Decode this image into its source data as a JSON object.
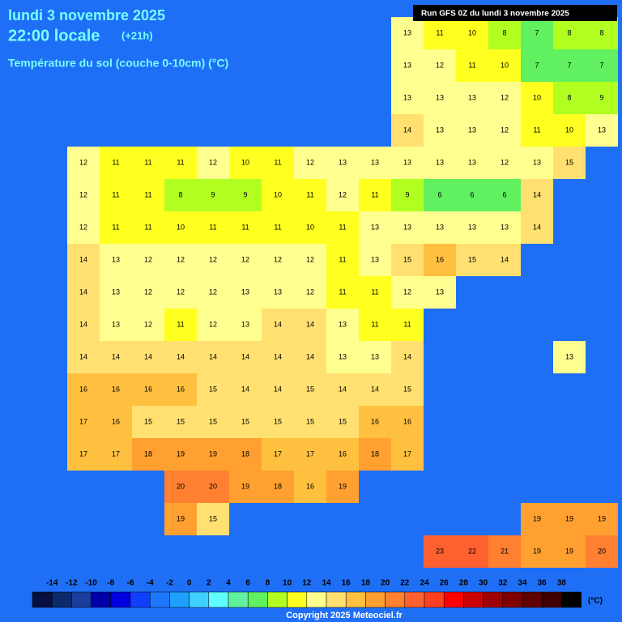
{
  "header": {
    "date": "lundi 3 novembre 2025",
    "time": "22:00 locale",
    "offset": "(+21h)",
    "subtitle": "Température du sol (couche 0-10cm) (°C)",
    "run": "Run GFS 0Z du lundi 3 novembre 2025"
  },
  "grid": {
    "rows": [
      [
        null,
        null,
        null,
        null,
        null,
        null,
        null,
        null,
        null,
        null,
        null,
        null,
        13,
        11,
        10,
        8,
        7,
        8,
        8
      ],
      [
        null,
        null,
        null,
        null,
        null,
        null,
        null,
        null,
        null,
        null,
        null,
        null,
        13,
        12,
        11,
        10,
        7,
        7,
        7
      ],
      [
        null,
        null,
        null,
        null,
        null,
        null,
        null,
        null,
        null,
        null,
        null,
        null,
        13,
        13,
        13,
        12,
        10,
        8,
        9
      ],
      [
        null,
        null,
        null,
        null,
        null,
        null,
        null,
        null,
        null,
        null,
        null,
        null,
        14,
        13,
        13,
        12,
        11,
        10,
        13
      ],
      [
        null,
        null,
        12,
        11,
        11,
        11,
        12,
        10,
        11,
        12,
        13,
        13,
        13,
        13,
        13,
        12,
        13,
        15,
        null
      ],
      [
        null,
        null,
        12,
        11,
        11,
        8,
        9,
        9,
        10,
        11,
        12,
        11,
        9,
        6,
        6,
        6,
        14,
        null,
        null
      ],
      [
        null,
        null,
        12,
        11,
        11,
        10,
        11,
        11,
        11,
        10,
        11,
        13,
        13,
        13,
        13,
        13,
        14,
        null,
        null
      ],
      [
        null,
        null,
        14,
        13,
        12,
        12,
        12,
        12,
        12,
        12,
        11,
        13,
        15,
        16,
        15,
        14,
        null,
        null,
        null
      ],
      [
        null,
        null,
        14,
        13,
        12,
        12,
        12,
        13,
        13,
        12,
        11,
        11,
        12,
        13,
        null,
        null,
        null,
        null,
        null
      ],
      [
        null,
        null,
        14,
        13,
        12,
        11,
        12,
        13,
        14,
        14,
        13,
        11,
        11,
        null,
        null,
        null,
        null,
        null,
        null
      ],
      [
        null,
        null,
        14,
        14,
        14,
        14,
        14,
        14,
        14,
        14,
        13,
        13,
        14,
        null,
        null,
        null,
        null,
        13,
        null
      ],
      [
        null,
        null,
        16,
        16,
        16,
        16,
        15,
        14,
        14,
        15,
        14,
        14,
        15,
        null,
        null,
        null,
        null,
        null,
        null
      ],
      [
        null,
        null,
        17,
        16,
        15,
        15,
        15,
        15,
        15,
        15,
        15,
        16,
        16,
        null,
        null,
        null,
        null,
        null,
        null
      ],
      [
        null,
        null,
        17,
        17,
        18,
        19,
        19,
        18,
        17,
        17,
        16,
        18,
        17,
        null,
        null,
        null,
        null,
        null,
        null
      ],
      [
        null,
        null,
        null,
        null,
        null,
        20,
        20,
        19,
        18,
        16,
        19,
        null,
        null,
        null,
        null,
        null,
        null,
        null,
        null
      ],
      [
        null,
        null,
        null,
        null,
        null,
        19,
        15,
        null,
        null,
        null,
        null,
        null,
        null,
        null,
        null,
        null,
        19,
        19,
        19
      ],
      [
        null,
        null,
        null,
        null,
        null,
        null,
        null,
        null,
        null,
        null,
        null,
        null,
        null,
        23,
        22,
        21,
        19,
        19,
        20
      ]
    ]
  },
  "legend": {
    "labels": [
      -14,
      -12,
      -10,
      -8,
      -6,
      -4,
      -2,
      0,
      2,
      4,
      6,
      8,
      10,
      12,
      14,
      16,
      18,
      20,
      22,
      24,
      26,
      28,
      30,
      32,
      34,
      36,
      38
    ],
    "colors": [
      "#061040",
      "#0a2a6a",
      "#1a3c9a",
      "#0000a8",
      "#0000e0",
      "#1040ff",
      "#1e78ff",
      "#1ea0ff",
      "#40d0ff",
      "#60ffff",
      "#60f0a0",
      "#60f060",
      "#b0ff20",
      "#ffff20",
      "#ffff90",
      "#ffe070",
      "#ffc040",
      "#ffa030",
      "#ff8030",
      "#ff6030",
      "#ff4020",
      "#ff0000",
      "#cc0000",
      "#a00000",
      "#800000",
      "#600000",
      "#400000",
      "#000000"
    ],
    "unit": "(°C)"
  },
  "footer": {
    "copyright": "Copyright 2025 Meteociel.fr"
  }
}
